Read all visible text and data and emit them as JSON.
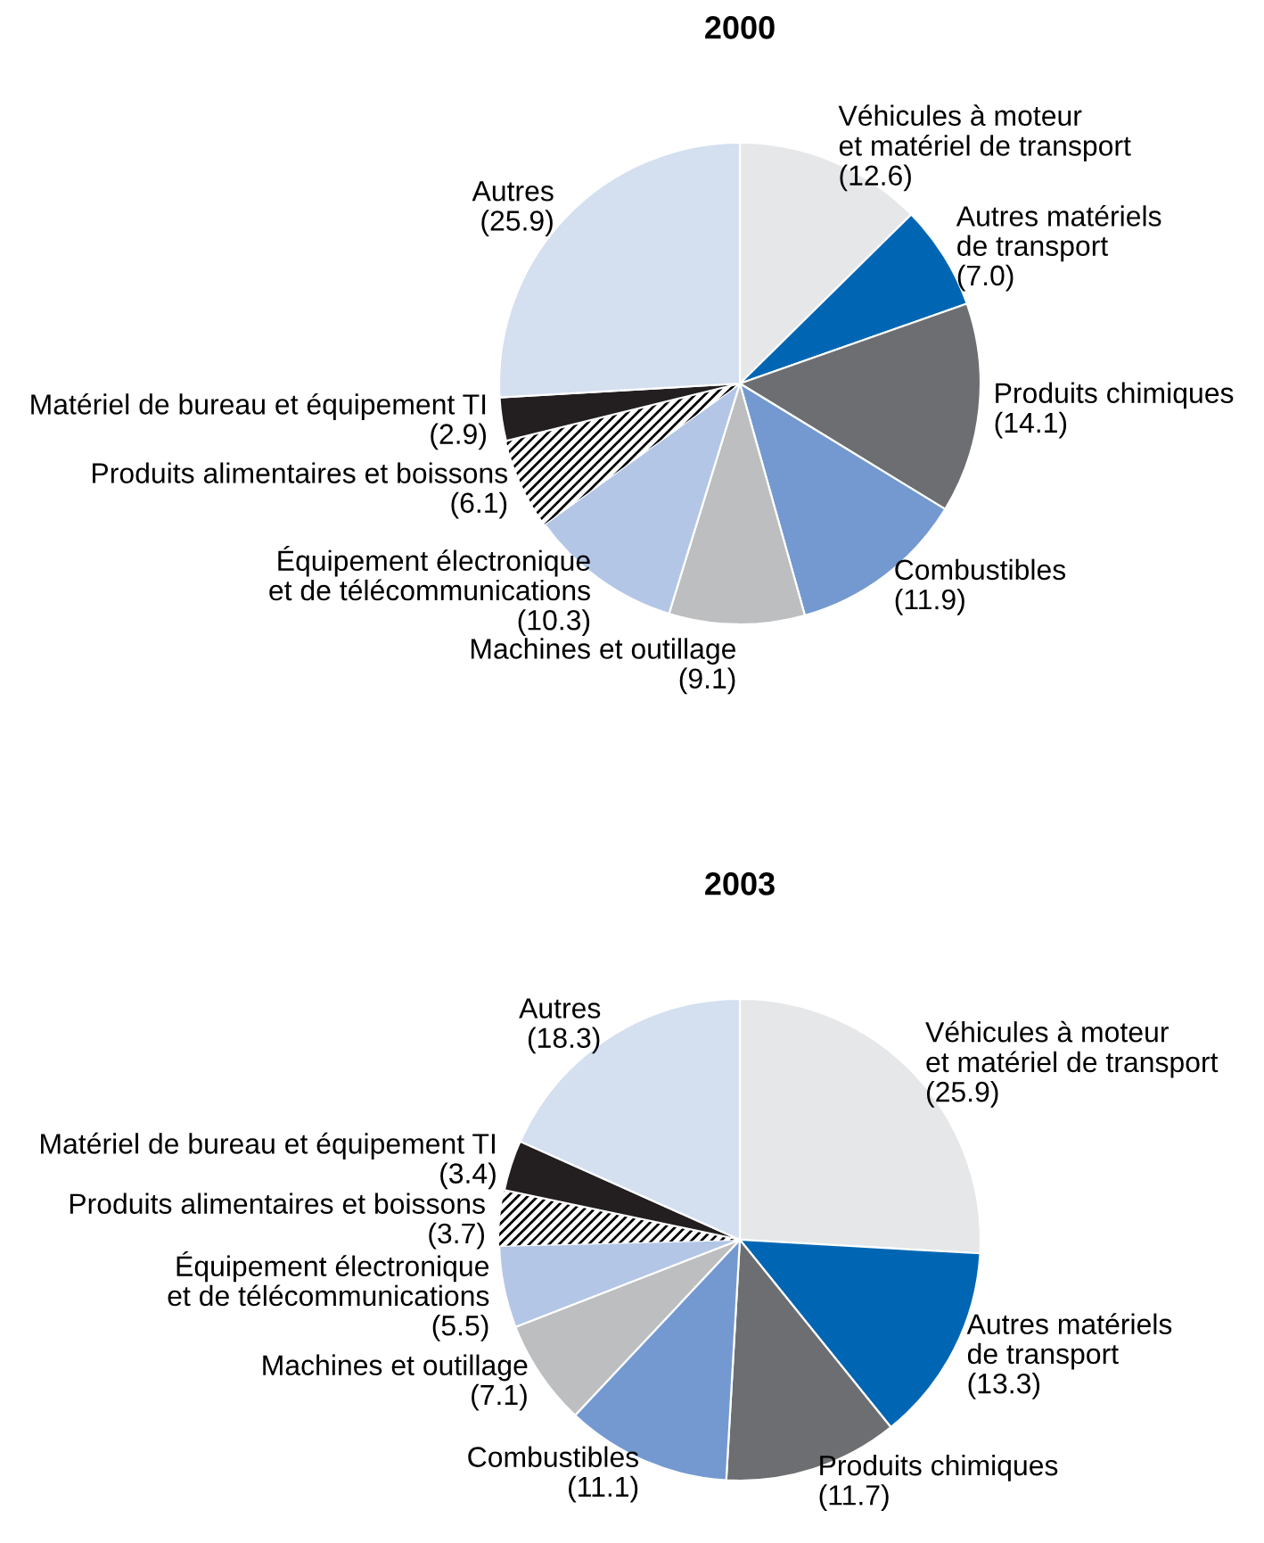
{
  "chart_data": [
    {
      "type": "pie",
      "title": "2000",
      "categories": [
        "Véhicules à moteur\net matériel de transport",
        "Autres matériels\nde transport",
        "Produits chimiques",
        "Combustibles",
        "Machines et outillage",
        "Équipement électronique\net de télécommunications",
        "Produits alimentaires et boissons",
        "Matériel de bureau et équipement TI",
        "Autres"
      ],
      "values": [
        12.6,
        7.0,
        14.1,
        11.9,
        9.1,
        10.3,
        6.1,
        2.9,
        25.9
      ],
      "value_labels": [
        "(12.6)",
        "(7.0)",
        "(14.1)",
        "(11.9)",
        "(9.1)",
        "(10.3)",
        "(6.1)",
        "(2.9)",
        "(25.9)"
      ],
      "colors": [
        "#e6e7e8",
        "#0066b3",
        "#6d6e71",
        "#7399d0",
        "#bcbec0",
        "#b3c6e6",
        "#ffffff",
        "#231f20",
        "#d4dff0"
      ]
    },
    {
      "type": "pie",
      "title": "2003",
      "categories": [
        "Véhicules à moteur\net matériel de transport",
        "Autres matériels\nde transport",
        "Produits chimiques",
        "Combustibles",
        "Machines et outillage",
        "Équipement électronique\net de télécommunications",
        "Produits alimentaires et boissons",
        "Matériel de bureau et équipement TI",
        "Autres"
      ],
      "values": [
        25.9,
        13.3,
        11.7,
        11.1,
        7.1,
        5.5,
        3.7,
        3.4,
        18.3
      ],
      "value_labels": [
        "(25.9)",
        "(13.3)",
        "(11.7)",
        "(11.1)",
        "(7.1)",
        "(5.5)",
        "(3.7)",
        "(3.4)",
        "(18.3)"
      ],
      "colors": [
        "#e6e7e8",
        "#0066b3",
        "#6d6e71",
        "#7399d0",
        "#bcbec0",
        "#b3c6e6",
        "#ffffff",
        "#231f20",
        "#d4dff0"
      ]
    }
  ]
}
